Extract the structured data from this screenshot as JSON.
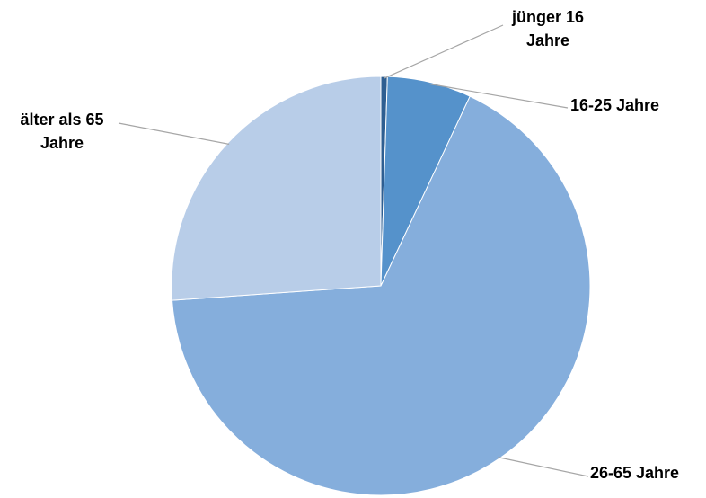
{
  "chart_data": {
    "type": "pie",
    "title": "",
    "start_angle_deg": 0,
    "direction": "clockwise",
    "slices": [
      {
        "label": "jünger 16\nJahre",
        "value": 0.5,
        "color": "#2e5e91"
      },
      {
        "label": "16-25 Jahre",
        "value": 6.5,
        "color": "#5592cb"
      },
      {
        "label": "26-65 Jahre",
        "value": 66.9,
        "color": "#85aedc"
      },
      {
        "label": "älter als 65\nJahre",
        "value": 26.1,
        "color": "#b8cde8"
      }
    ],
    "legend": "none",
    "data_labels": "outside-with-leader-lines"
  }
}
